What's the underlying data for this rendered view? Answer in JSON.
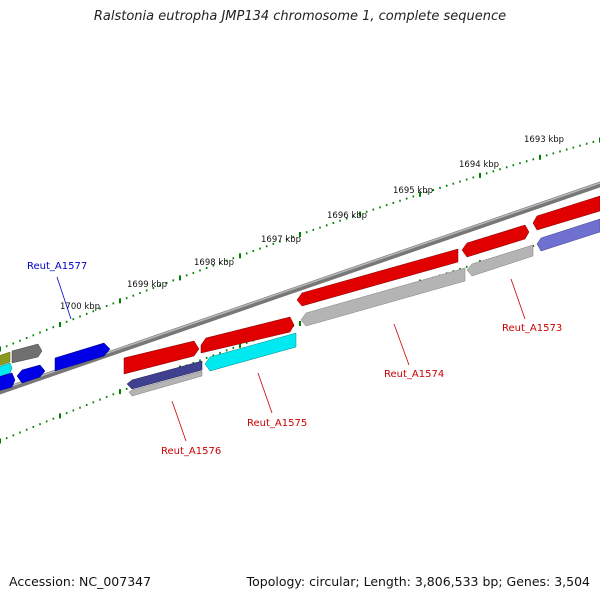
{
  "title": "Ralstonia eutropha JMP134 chromosome 1, complete sequence",
  "footer": {
    "accession": "Accession: NC_007347",
    "summary": "Topology: circular; Length: 3,806,533 bp; Genes: 3,504"
  },
  "colors": {
    "red_gene": "#e00000",
    "cyan_gene": "#00e8f0",
    "blue_gene": "#0000e6",
    "gray_gene": "#b4b4b4",
    "navy_gene": "#404090",
    "lavender_gene": "#7070d0",
    "dark_gray_gene": "#707070",
    "olive_gene": "#8a9a20",
    "tick_green": "#008000",
    "backbone": "#888888",
    "label_red": "#cc0000",
    "label_blue": "#0000cc"
  },
  "ticks": {
    "upper_labels": [
      "1693 kbp",
      "1694 kbp",
      "1695 kbp",
      "1696 kbp",
      "1697 kbp",
      "1698 kbp",
      "1699 kbp",
      "1700 kbp"
    ]
  },
  "gene_labels": {
    "a1573": "Reut_A1573",
    "a1574": "Reut_A1574",
    "a1575": "Reut_A1575",
    "a1576": "Reut_A1576",
    "a1577": "Reut_A1577"
  }
}
